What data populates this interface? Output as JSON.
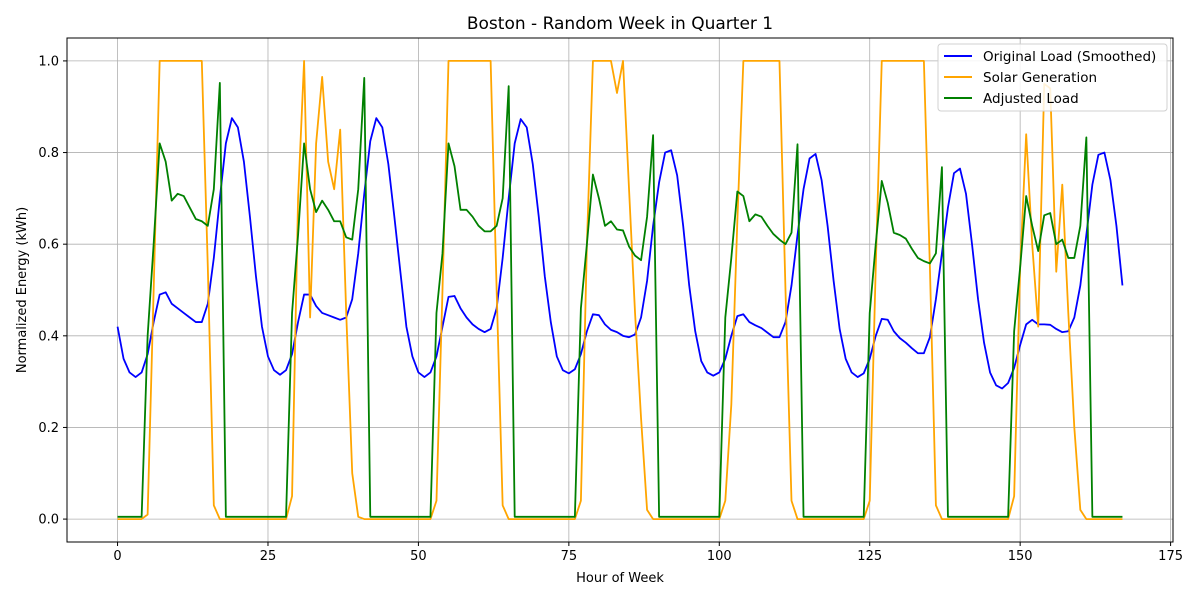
{
  "chart_data": {
    "type": "line",
    "title": "Boston - Random Week in Quarter 1",
    "xlabel": "Hour of Week",
    "ylabel": "Normalized Energy (kWh)",
    "xlim": [
      -8.4,
      175.4
    ],
    "ylim": [
      -0.05,
      1.05
    ],
    "xticks": [
      0,
      25,
      50,
      75,
      100,
      125,
      150,
      175
    ],
    "yticks": [
      0.0,
      0.2,
      0.4,
      0.6,
      0.8,
      1.0
    ],
    "xtick_labels": [
      "0",
      "25",
      "50",
      "75",
      "100",
      "125",
      "150",
      "175"
    ],
    "ytick_labels": [
      "0.0",
      "0.2",
      "0.4",
      "0.6",
      "0.8",
      "1.0"
    ],
    "grid": true,
    "legend_position": "top-right",
    "x_start": 0,
    "x_step": 1,
    "series": [
      {
        "name": "Original Load (Smoothed)",
        "color": "#0000ff",
        "values": [
          0.42,
          0.35,
          0.32,
          0.31,
          0.32,
          0.36,
          0.43,
          0.49,
          0.495,
          0.47,
          0.46,
          0.45,
          0.44,
          0.43,
          0.43,
          0.47,
          0.57,
          0.7,
          0.82,
          0.875,
          0.855,
          0.78,
          0.66,
          0.53,
          0.42,
          0.355,
          0.325,
          0.315,
          0.325,
          0.36,
          0.43,
          0.49,
          0.49,
          0.465,
          0.45,
          0.445,
          0.44,
          0.435,
          0.44,
          0.48,
          0.58,
          0.71,
          0.825,
          0.875,
          0.855,
          0.775,
          0.66,
          0.54,
          0.42,
          0.355,
          0.32,
          0.31,
          0.32,
          0.355,
          0.42,
          0.485,
          0.487,
          0.46,
          0.44,
          0.425,
          0.415,
          0.408,
          0.415,
          0.46,
          0.57,
          0.7,
          0.82,
          0.873,
          0.855,
          0.775,
          0.66,
          0.53,
          0.43,
          0.355,
          0.325,
          0.318,
          0.327,
          0.36,
          0.41,
          0.447,
          0.445,
          0.425,
          0.413,
          0.408,
          0.4,
          0.397,
          0.403,
          0.44,
          0.52,
          0.64,
          0.735,
          0.8,
          0.805,
          0.75,
          0.64,
          0.51,
          0.41,
          0.345,
          0.32,
          0.313,
          0.32,
          0.35,
          0.4,
          0.443,
          0.447,
          0.43,
          0.423,
          0.417,
          0.407,
          0.397,
          0.397,
          0.43,
          0.51,
          0.62,
          0.72,
          0.787,
          0.797,
          0.74,
          0.64,
          0.52,
          0.415,
          0.35,
          0.32,
          0.31,
          0.318,
          0.35,
          0.4,
          0.437,
          0.435,
          0.41,
          0.395,
          0.385,
          0.373,
          0.362,
          0.362,
          0.397,
          0.48,
          0.58,
          0.68,
          0.755,
          0.765,
          0.71,
          0.6,
          0.48,
          0.385,
          0.32,
          0.292,
          0.285,
          0.297,
          0.33,
          0.38,
          0.425,
          0.435,
          0.425,
          0.425,
          0.424,
          0.415,
          0.408,
          0.41,
          0.44,
          0.51,
          0.62,
          0.73,
          0.795,
          0.8,
          0.74,
          0.64,
          0.51
        ]
      },
      {
        "name": "Solar Generation",
        "color": "#ffa500",
        "values": [
          0,
          0,
          0,
          0,
          0,
          0.01,
          0.5,
          1,
          1,
          1,
          1,
          1,
          1,
          1,
          1,
          0.55,
          0.03,
          0,
          0,
          0,
          0,
          0,
          0,
          0,
          0,
          0,
          0,
          0,
          0,
          0.05,
          0.7,
          1,
          0.44,
          0.82,
          0.965,
          0.78,
          0.72,
          0.85,
          0.45,
          0.1,
          0.005,
          0,
          0,
          0,
          0,
          0,
          0,
          0,
          0,
          0,
          0,
          0,
          0,
          0.04,
          0.5,
          1,
          1,
          1,
          1,
          1,
          1,
          1,
          1,
          0.5,
          0.03,
          0,
          0,
          0,
          0,
          0,
          0,
          0,
          0,
          0,
          0,
          0,
          0,
          0.04,
          0.6,
          1,
          1,
          1,
          1,
          0.93,
          1,
          0.72,
          0.45,
          0.22,
          0.02,
          0,
          0,
          0,
          0,
          0,
          0,
          0,
          0,
          0,
          0,
          0,
          0,
          0.04,
          0.25,
          0.65,
          1,
          1,
          1,
          1,
          1,
          1,
          1,
          0.5,
          0.04,
          0,
          0,
          0,
          0,
          0,
          0,
          0,
          0,
          0,
          0,
          0,
          0,
          0.04,
          0.55,
          1,
          1,
          1,
          1,
          1,
          1,
          1,
          1,
          0.55,
          0.03,
          0,
          0,
          0,
          0,
          0,
          0,
          0,
          0,
          0,
          0,
          0,
          0,
          0.05,
          0.55,
          0.84,
          0.6,
          0.42,
          0.95,
          0.94,
          0.54,
          0.73,
          0.45,
          0.2,
          0.02,
          0,
          0,
          0,
          0,
          0,
          0,
          0
        ]
      },
      {
        "name": "Adjusted Load",
        "color": "#008000",
        "values": [
          0.005,
          0.005,
          0.005,
          0.005,
          0.005,
          0.4,
          0.6,
          0.82,
          0.78,
          0.695,
          0.71,
          0.705,
          0.68,
          0.655,
          0.65,
          0.64,
          0.72,
          0.952,
          0.005,
          0.005,
          0.005,
          0.005,
          0.005,
          0.005,
          0.005,
          0.005,
          0.005,
          0.005,
          0.005,
          0.45,
          0.62,
          0.82,
          0.72,
          0.67,
          0.695,
          0.675,
          0.65,
          0.65,
          0.615,
          0.61,
          0.72,
          0.963,
          0.005,
          0.005,
          0.005,
          0.005,
          0.005,
          0.005,
          0.005,
          0.005,
          0.005,
          0.005,
          0.005,
          0.45,
          0.58,
          0.82,
          0.77,
          0.675,
          0.675,
          0.66,
          0.64,
          0.628,
          0.628,
          0.64,
          0.7,
          0.945,
          0.005,
          0.005,
          0.005,
          0.005,
          0.005,
          0.005,
          0.005,
          0.005,
          0.005,
          0.005,
          0.005,
          0.46,
          0.6,
          0.752,
          0.7,
          0.64,
          0.65,
          0.632,
          0.63,
          0.595,
          0.575,
          0.565,
          0.66,
          0.838,
          0.005,
          0.005,
          0.005,
          0.005,
          0.005,
          0.005,
          0.005,
          0.005,
          0.005,
          0.005,
          0.005,
          0.44,
          0.57,
          0.715,
          0.705,
          0.65,
          0.665,
          0.66,
          0.64,
          0.622,
          0.61,
          0.6,
          0.625,
          0.818,
          0.005,
          0.005,
          0.005,
          0.005,
          0.005,
          0.005,
          0.005,
          0.005,
          0.005,
          0.005,
          0.005,
          0.45,
          0.6,
          0.738,
          0.69,
          0.625,
          0.62,
          0.612,
          0.59,
          0.57,
          0.563,
          0.558,
          0.58,
          0.768,
          0.005,
          0.005,
          0.005,
          0.005,
          0.005,
          0.005,
          0.005,
          0.005,
          0.005,
          0.005,
          0.005,
          0.41,
          0.55,
          0.705,
          0.64,
          0.585,
          0.663,
          0.668,
          0.6,
          0.61,
          0.57,
          0.57,
          0.64,
          0.833,
          0.005,
          0.005,
          0.005,
          0.005,
          0.005,
          0.005
        ]
      }
    ]
  }
}
